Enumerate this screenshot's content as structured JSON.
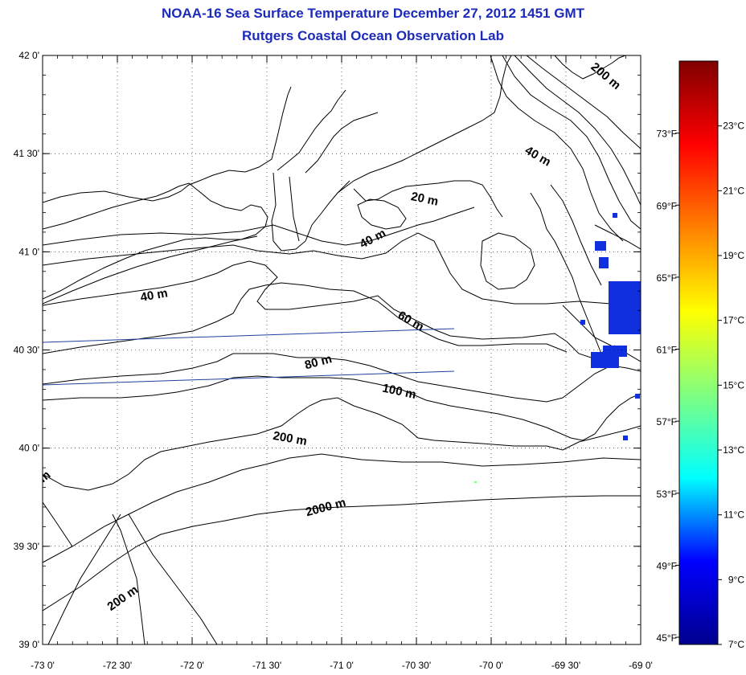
{
  "header": {
    "title": "NOAA-16 Sea Surface Temperature December 27, 2012 1451 GMT",
    "subtitle": "Rutgers Coastal Ocean Observation Lab"
  },
  "map": {
    "lon_range": [
      -73.0,
      -69.0
    ],
    "lat_range": [
      39.0,
      42.0
    ],
    "lon_ticks": [
      {
        "v": -73.0,
        "label": "-73 0'"
      },
      {
        "v": -72.5,
        "label": "-72 30'"
      },
      {
        "v": -72.0,
        "label": "-72 0'"
      },
      {
        "v": -71.5,
        "label": "-71 30'"
      },
      {
        "v": -71.0,
        "label": "-71 0'"
      },
      {
        "v": -70.5,
        "label": "-70 30'"
      },
      {
        "v": -70.0,
        "label": "-70 0'"
      },
      {
        "v": -69.5,
        "label": "-69 30'"
      },
      {
        "v": -69.0,
        "label": "-69 0'"
      }
    ],
    "lat_ticks": [
      {
        "v": 42.0,
        "label": "42 0'"
      },
      {
        "v": 41.5,
        "label": "41 30'"
      },
      {
        "v": 41.0,
        "label": "41 0'"
      },
      {
        "v": 40.5,
        "label": "40 30'"
      },
      {
        "v": 40.0,
        "label": "40 0'"
      },
      {
        "v": 39.5,
        "label": "39 30'"
      },
      {
        "v": 39.0,
        "label": "39 0'"
      }
    ],
    "grid": "dotted",
    "isobath_labels": [
      {
        "text": "200 m",
        "lon": -69.25,
        "lat": 41.88,
        "angle": 40
      },
      {
        "text": "40 m",
        "lon": -69.7,
        "lat": 41.47,
        "angle": 30
      },
      {
        "text": "20 m",
        "lon": -70.45,
        "lat": 41.25,
        "angle": 12
      },
      {
        "text": "40 m",
        "lon": -70.78,
        "lat": 41.05,
        "angle": -28
      },
      {
        "text": "40 m",
        "lon": -72.25,
        "lat": 40.76,
        "angle": -10
      },
      {
        "text": "60 m",
        "lon": -70.55,
        "lat": 40.63,
        "angle": 30
      },
      {
        "text": "80 m",
        "lon": -71.15,
        "lat": 40.42,
        "angle": -15
      },
      {
        "text": "100 m",
        "lon": -70.62,
        "lat": 40.27,
        "angle": 12
      },
      {
        "text": "200 m",
        "lon": -71.35,
        "lat": 40.03,
        "angle": 10
      },
      {
        "text": "2000 m",
        "lon": -71.1,
        "lat": 39.68,
        "angle": -15
      },
      {
        "text": "200 m",
        "lon": -72.45,
        "lat": 39.22,
        "angle": -35
      },
      {
        "text": "m",
        "lon": -72.97,
        "lat": 39.84,
        "angle": -40
      }
    ],
    "sst_pixel_color": "#1030e0",
    "land_fill": "#ffffff",
    "line_color": "#000000",
    "track_color": "#2040a0"
  },
  "colorbar": {
    "range_c": [
      7,
      25
    ],
    "c_ticks": [
      {
        "v": 23,
        "label": "23°C"
      },
      {
        "v": 21,
        "label": "21°C"
      },
      {
        "v": 19,
        "label": "19°C"
      },
      {
        "v": 17,
        "label": "17°C"
      },
      {
        "v": 15,
        "label": "15°C"
      },
      {
        "v": 13,
        "label": "13°C"
      },
      {
        "v": 11,
        "label": "11°C"
      },
      {
        "v": 9,
        "label": "9°C"
      },
      {
        "v": 7,
        "label": "7°C"
      }
    ],
    "f_ticks": [
      {
        "v": 73,
        "label": "73°F"
      },
      {
        "v": 69,
        "label": "69°F"
      },
      {
        "v": 65,
        "label": "65°F"
      },
      {
        "v": 61,
        "label": "61°F"
      },
      {
        "v": 57,
        "label": "57°F"
      },
      {
        "v": 53,
        "label": "53°F"
      },
      {
        "v": 49,
        "label": "49°F"
      },
      {
        "v": 45,
        "label": "45°F"
      }
    ],
    "stops": [
      "#00008f",
      "#0000ff",
      "#00ffff",
      "#80ff80",
      "#ffff00",
      "#ff8000",
      "#ff0000",
      "#800000"
    ]
  }
}
